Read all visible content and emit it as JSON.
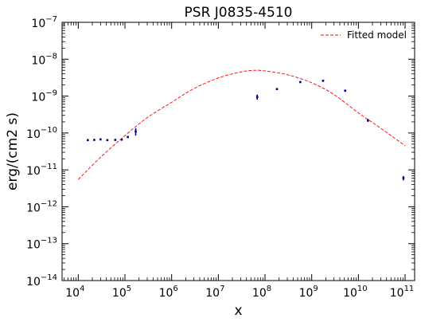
{
  "chart_data": {
    "type": "scatter",
    "title": "PSR J0835-4510",
    "xlabel": "x",
    "ylabel": "erg/(cm2 s)",
    "xscale": "log",
    "yscale": "log",
    "xlim": [
      4500.0,
      160000000000.0
    ],
    "ylim": [
      1e-14,
      1e-07
    ],
    "grid": false,
    "legend": {
      "placement": "top-right",
      "entries": [
        "Fitted model"
      ]
    },
    "x_ticks": [
      {
        "base": "10",
        "exp": "4",
        "value": 10000.0
      },
      {
        "base": "10",
        "exp": "5",
        "value": 100000.0
      },
      {
        "base": "10",
        "exp": "6",
        "value": 1000000.0
      },
      {
        "base": "10",
        "exp": "7",
        "value": 10000000.0
      },
      {
        "base": "10",
        "exp": "8",
        "value": 100000000.0
      },
      {
        "base": "10",
        "exp": "9",
        "value": 1000000000.0
      },
      {
        "base": "10",
        "exp": "10",
        "value": 10000000000.0
      },
      {
        "base": "10",
        "exp": "11",
        "value": 100000000000.0
      }
    ],
    "y_ticks": [
      {
        "base": "10",
        "exp": "−14",
        "value": 1e-14
      },
      {
        "base": "10",
        "exp": "−13",
        "value": 1e-13
      },
      {
        "base": "10",
        "exp": "−12",
        "value": 1e-12
      },
      {
        "base": "10",
        "exp": "−11",
        "value": 1e-11
      },
      {
        "base": "10",
        "exp": "−10",
        "value": 1e-10
      },
      {
        "base": "10",
        "exp": "−9",
        "value": 1e-09
      },
      {
        "base": "10",
        "exp": "−8",
        "value": 1e-08
      },
      {
        "base": "10",
        "exp": "−7",
        "value": 1e-07
      }
    ],
    "series": [
      {
        "name": "",
        "kind": "points",
        "color": "#00008b",
        "x": [
          16000.0,
          22000.0,
          30000.0,
          42000.0,
          62000.0,
          85000.0,
          115000.0,
          170000.0,
          68000000.0,
          180000000.0,
          570000000.0,
          1750000000.0,
          5200000000.0,
          16000000000.0,
          92000000000.0
        ],
        "y": [
          6.4e-11,
          6.5e-11,
          6.7e-11,
          6.4e-11,
          6.5e-11,
          6.6e-11,
          7.8e-11,
          1.1e-10,
          9.5e-10,
          1.55e-09,
          2.4e-09,
          2.6e-09,
          1.4e-09,
          2.2e-10,
          6e-12
        ],
        "y_err_low": [
          0,
          0,
          0,
          0,
          0,
          0,
          5e-12,
          2.5e-11,
          1.5e-10,
          5e-11,
          5e-11,
          5e-11,
          5e-11,
          2e-11,
          8e-13
        ],
        "y_err_high": [
          0,
          0,
          0,
          0,
          0,
          0,
          5e-12,
          2.5e-11,
          1.5e-10,
          5e-11,
          5e-11,
          5e-11,
          5e-11,
          2e-11,
          8e-13
        ]
      },
      {
        "name": "Fitted model",
        "kind": "curve",
        "color": "#ff0000",
        "linestyle": "dashed",
        "x": [
          10000.0,
          30000.0,
          100000.0,
          300000.0,
          1000000.0,
          3000000.0,
          10000000.0,
          30000000.0,
          60000000.0,
          100000000.0,
          300000000.0,
          1000000000.0,
          3000000000.0,
          10000000000.0,
          30000000000.0,
          100000000000.0
        ],
        "y": [
          5.5e-12,
          2.2e-11,
          8.5e-11,
          2.6e-10,
          6.8e-10,
          1.6e-09,
          3.1e-09,
          4.5e-09,
          5e-09,
          4.8e-09,
          3.8e-09,
          2.3e-09,
          1.1e-09,
          3.5e-10,
          1.35e-10,
          4.5e-11
        ]
      }
    ]
  }
}
